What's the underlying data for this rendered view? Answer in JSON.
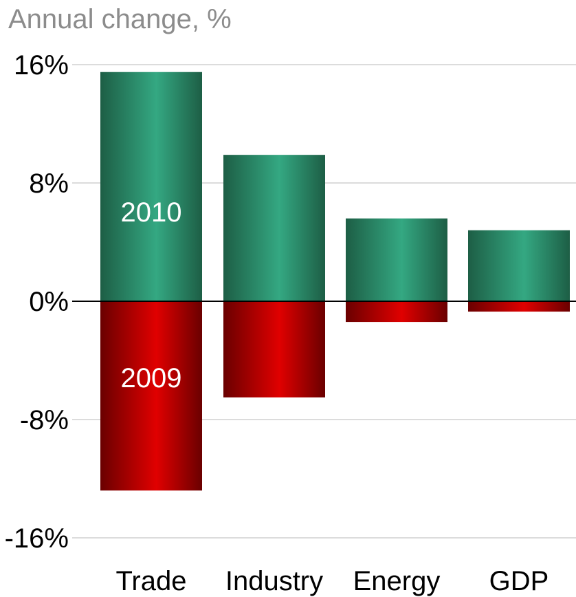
{
  "chart_data": {
    "type": "bar",
    "title": "Annual change, %",
    "categories": [
      "Trade",
      "Industry",
      "Energy",
      "GDP"
    ],
    "series": [
      {
        "name": "2010",
        "values": [
          15.5,
          9.9,
          5.6,
          4.8
        ]
      },
      {
        "name": "2009",
        "values": [
          -12.8,
          -6.5,
          -1.4,
          -0.7
        ]
      }
    ],
    "ylim": [
      -16,
      16
    ],
    "yticks": [
      16,
      8,
      0,
      -8,
      -16
    ],
    "ytick_labels": [
      "16%",
      "8%",
      "0%",
      "-8%",
      "-16%"
    ],
    "grid": true,
    "stacked": true,
    "colors": {
      "positive_edge": "#1d5e45",
      "positive_mid": "#34a882",
      "negative_edge": "#6a0000",
      "negative_mid": "#e00000",
      "grid": "#d0d0d0",
      "zero_line": "#000000",
      "label_on_bar": "#ffffff",
      "title": "#8c8c8c"
    }
  }
}
